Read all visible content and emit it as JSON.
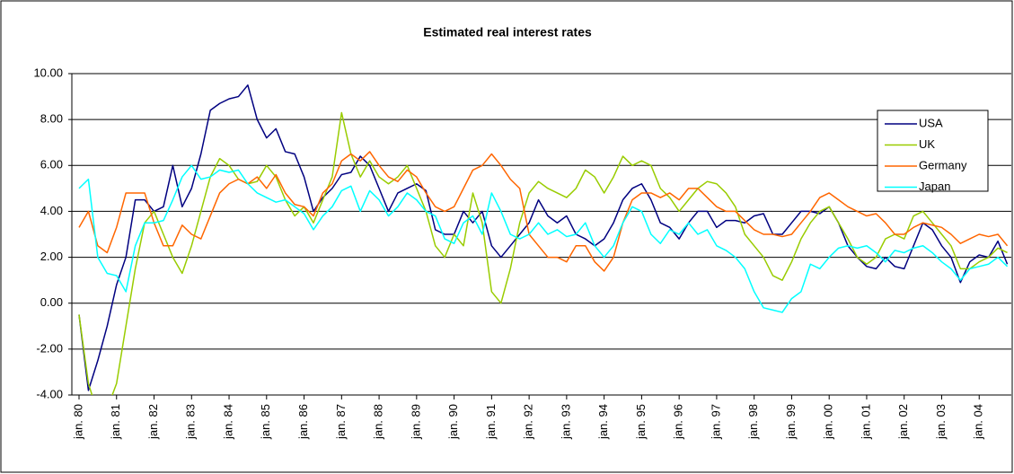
{
  "chart_data": {
    "type": "line",
    "title": "Estimated real interest rates",
    "categories": [
      "jan. 80",
      null,
      null,
      null,
      "jan. 81",
      null,
      null,
      null,
      "jan. 82",
      null,
      null,
      null,
      "jan. 83",
      null,
      null,
      null,
      "jan. 84",
      null,
      null,
      null,
      "jan. 85",
      null,
      null,
      null,
      "jan. 86",
      null,
      null,
      null,
      "jan. 87",
      null,
      null,
      null,
      "jan. 88",
      null,
      null,
      null,
      "jan. 89",
      null,
      null,
      null,
      "jan. 90",
      null,
      null,
      null,
      "jan. 91",
      null,
      null,
      null,
      "jan. 92",
      null,
      null,
      null,
      "jan. 93",
      null,
      null,
      null,
      "jan. 94",
      null,
      null,
      null,
      "jan. 95",
      null,
      null,
      null,
      "jan. 96",
      null,
      null,
      null,
      "jan. 97",
      null,
      null,
      null,
      "jan. 98",
      null,
      null,
      null,
      "jan. 99",
      null,
      null,
      null,
      "jan. 00",
      null,
      null,
      null,
      "jan. 01",
      null,
      null,
      null,
      "jan. 02",
      null,
      null,
      null,
      "jan. 03",
      null,
      null,
      null,
      "jan. 04",
      null,
      null,
      null
    ],
    "series": [
      {
        "name": "USA",
        "color": "#000080",
        "values": [
          -0.5,
          -3.8,
          -2.5,
          -1.0,
          0.8,
          2.0,
          4.5,
          4.5,
          4.0,
          4.2,
          6.0,
          4.2,
          5.0,
          6.5,
          8.4,
          8.7,
          8.9,
          9.0,
          9.5,
          8.0,
          7.2,
          7.6,
          6.6,
          6.5,
          5.5,
          4.0,
          4.6,
          5.0,
          5.6,
          5.7,
          6.4,
          6.0,
          5.0,
          4.0,
          4.8,
          5.0,
          5.2,
          4.9,
          3.2,
          3.0,
          3.0,
          4.0,
          3.5,
          4.0,
          2.5,
          2.0,
          2.5,
          3.0,
          3.5,
          4.5,
          3.8,
          3.5,
          3.8,
          3.0,
          2.8,
          2.5,
          2.8,
          3.5,
          4.5,
          5.0,
          5.2,
          4.5,
          3.5,
          3.3,
          2.8,
          3.5,
          4.0,
          4.0,
          3.3,
          3.6,
          3.6,
          3.5,
          3.8,
          3.9,
          3.0,
          3.0,
          3.5,
          4.0,
          4.0,
          3.9,
          4.2,
          3.5,
          2.5,
          2.0,
          1.6,
          1.5,
          2.0,
          1.6,
          1.5,
          2.5,
          3.5,
          3.2,
          2.5,
          2.0,
          0.9,
          1.8,
          2.1,
          2.0,
          2.7,
          1.7
        ]
      },
      {
        "name": "UK",
        "color": "#99cc00",
        "values": [
          -0.5,
          -3.5,
          -4.8,
          -4.6,
          -3.5,
          -1.0,
          1.5,
          3.5,
          4.0,
          3.0,
          2.0,
          1.3,
          2.5,
          4.0,
          5.5,
          6.3,
          6.0,
          5.4,
          5.2,
          5.3,
          6.0,
          5.5,
          4.5,
          3.8,
          4.2,
          3.5,
          4.5,
          5.5,
          8.3,
          6.5,
          5.5,
          6.2,
          5.5,
          5.2,
          5.5,
          6.0,
          5.0,
          4.0,
          2.5,
          2.0,
          3.0,
          2.5,
          4.8,
          3.5,
          0.5,
          0.0,
          1.5,
          3.5,
          4.8,
          5.3,
          5.0,
          4.8,
          4.6,
          5.0,
          5.8,
          5.5,
          4.8,
          5.5,
          6.4,
          6.0,
          6.2,
          6.0,
          5.0,
          4.6,
          4.0,
          4.5,
          5.0,
          5.3,
          5.2,
          4.8,
          4.2,
          3.0,
          2.5,
          2.0,
          1.2,
          1.0,
          1.8,
          2.8,
          3.5,
          4.0,
          4.2,
          3.5,
          2.8,
          2.0,
          1.7,
          2.0,
          2.8,
          3.0,
          2.8,
          3.8,
          4.0,
          3.5,
          3.0,
          2.5,
          1.5,
          1.5,
          1.8,
          2.0,
          2.4,
          2.2
        ]
      },
      {
        "name": "Germany",
        "color": "#ff6600",
        "values": [
          3.3,
          4.0,
          2.5,
          2.2,
          3.3,
          4.8,
          4.8,
          4.8,
          3.5,
          2.5,
          2.5,
          3.4,
          3.0,
          2.8,
          3.8,
          4.8,
          5.2,
          5.4,
          5.2,
          5.5,
          5.0,
          5.6,
          4.8,
          4.3,
          4.2,
          3.8,
          4.8,
          5.2,
          6.2,
          6.5,
          6.2,
          6.6,
          6.0,
          5.5,
          5.3,
          5.8,
          5.5,
          4.8,
          4.2,
          4.0,
          4.2,
          5.0,
          5.8,
          6.0,
          6.5,
          6.0,
          5.4,
          5.0,
          3.0,
          2.5,
          2.0,
          2.0,
          1.8,
          2.5,
          2.5,
          1.8,
          1.4,
          2.0,
          3.5,
          4.5,
          4.8,
          4.8,
          4.6,
          4.8,
          4.5,
          5.0,
          5.0,
          4.6,
          4.2,
          4.0,
          4.0,
          3.6,
          3.2,
          3.0,
          3.0,
          2.9,
          3.0,
          3.5,
          4.0,
          4.6,
          4.8,
          4.5,
          4.2,
          4.0,
          3.8,
          3.9,
          3.5,
          3.0,
          3.0,
          3.3,
          3.5,
          3.4,
          3.3,
          3.0,
          2.6,
          2.8,
          3.0,
          2.9,
          3.0,
          2.5
        ]
      },
      {
        "name": "Japan",
        "color": "#00ffff",
        "values": [
          5.0,
          5.4,
          2.0,
          1.3,
          1.2,
          0.5,
          2.5,
          3.5,
          3.5,
          3.6,
          4.5,
          5.5,
          6.0,
          5.4,
          5.5,
          5.8,
          5.7,
          5.8,
          5.2,
          4.8,
          4.6,
          4.4,
          4.5,
          4.2,
          3.9,
          3.2,
          3.8,
          4.2,
          4.9,
          5.1,
          4.0,
          4.9,
          4.5,
          3.8,
          4.2,
          4.8,
          4.5,
          4.0,
          3.8,
          2.8,
          2.6,
          3.5,
          3.8,
          3.0,
          4.8,
          4.0,
          3.0,
          2.8,
          3.0,
          3.5,
          3.0,
          3.2,
          2.9,
          3.0,
          3.5,
          2.5,
          2.0,
          2.5,
          3.5,
          4.2,
          4.0,
          3.0,
          2.6,
          3.2,
          3.0,
          3.5,
          3.0,
          3.2,
          2.5,
          2.3,
          2.0,
          1.5,
          0.5,
          -0.2,
          -0.3,
          -0.4,
          0.2,
          0.5,
          1.7,
          1.5,
          2.0,
          2.4,
          2.5,
          2.4,
          2.5,
          2.2,
          1.8,
          2.3,
          2.2,
          2.4,
          2.5,
          2.2,
          1.8,
          1.5,
          1.0,
          1.5,
          1.6,
          1.7,
          2.0,
          1.6
        ]
      }
    ],
    "ylim": [
      -4,
      10
    ],
    "yticks": [
      {
        "value": -4,
        "label": "-4.00"
      },
      {
        "value": -2,
        "label": "-2.00"
      },
      {
        "value": 0,
        "label": "0.00"
      },
      {
        "value": 2,
        "label": "2.00"
      },
      {
        "value": 4,
        "label": "4.00"
      },
      {
        "value": 6,
        "label": "6.00"
      },
      {
        "value": 8,
        "label": "8.00"
      },
      {
        "value": 10,
        "label": "10.00"
      }
    ],
    "grid": true,
    "legend": "upper right"
  }
}
